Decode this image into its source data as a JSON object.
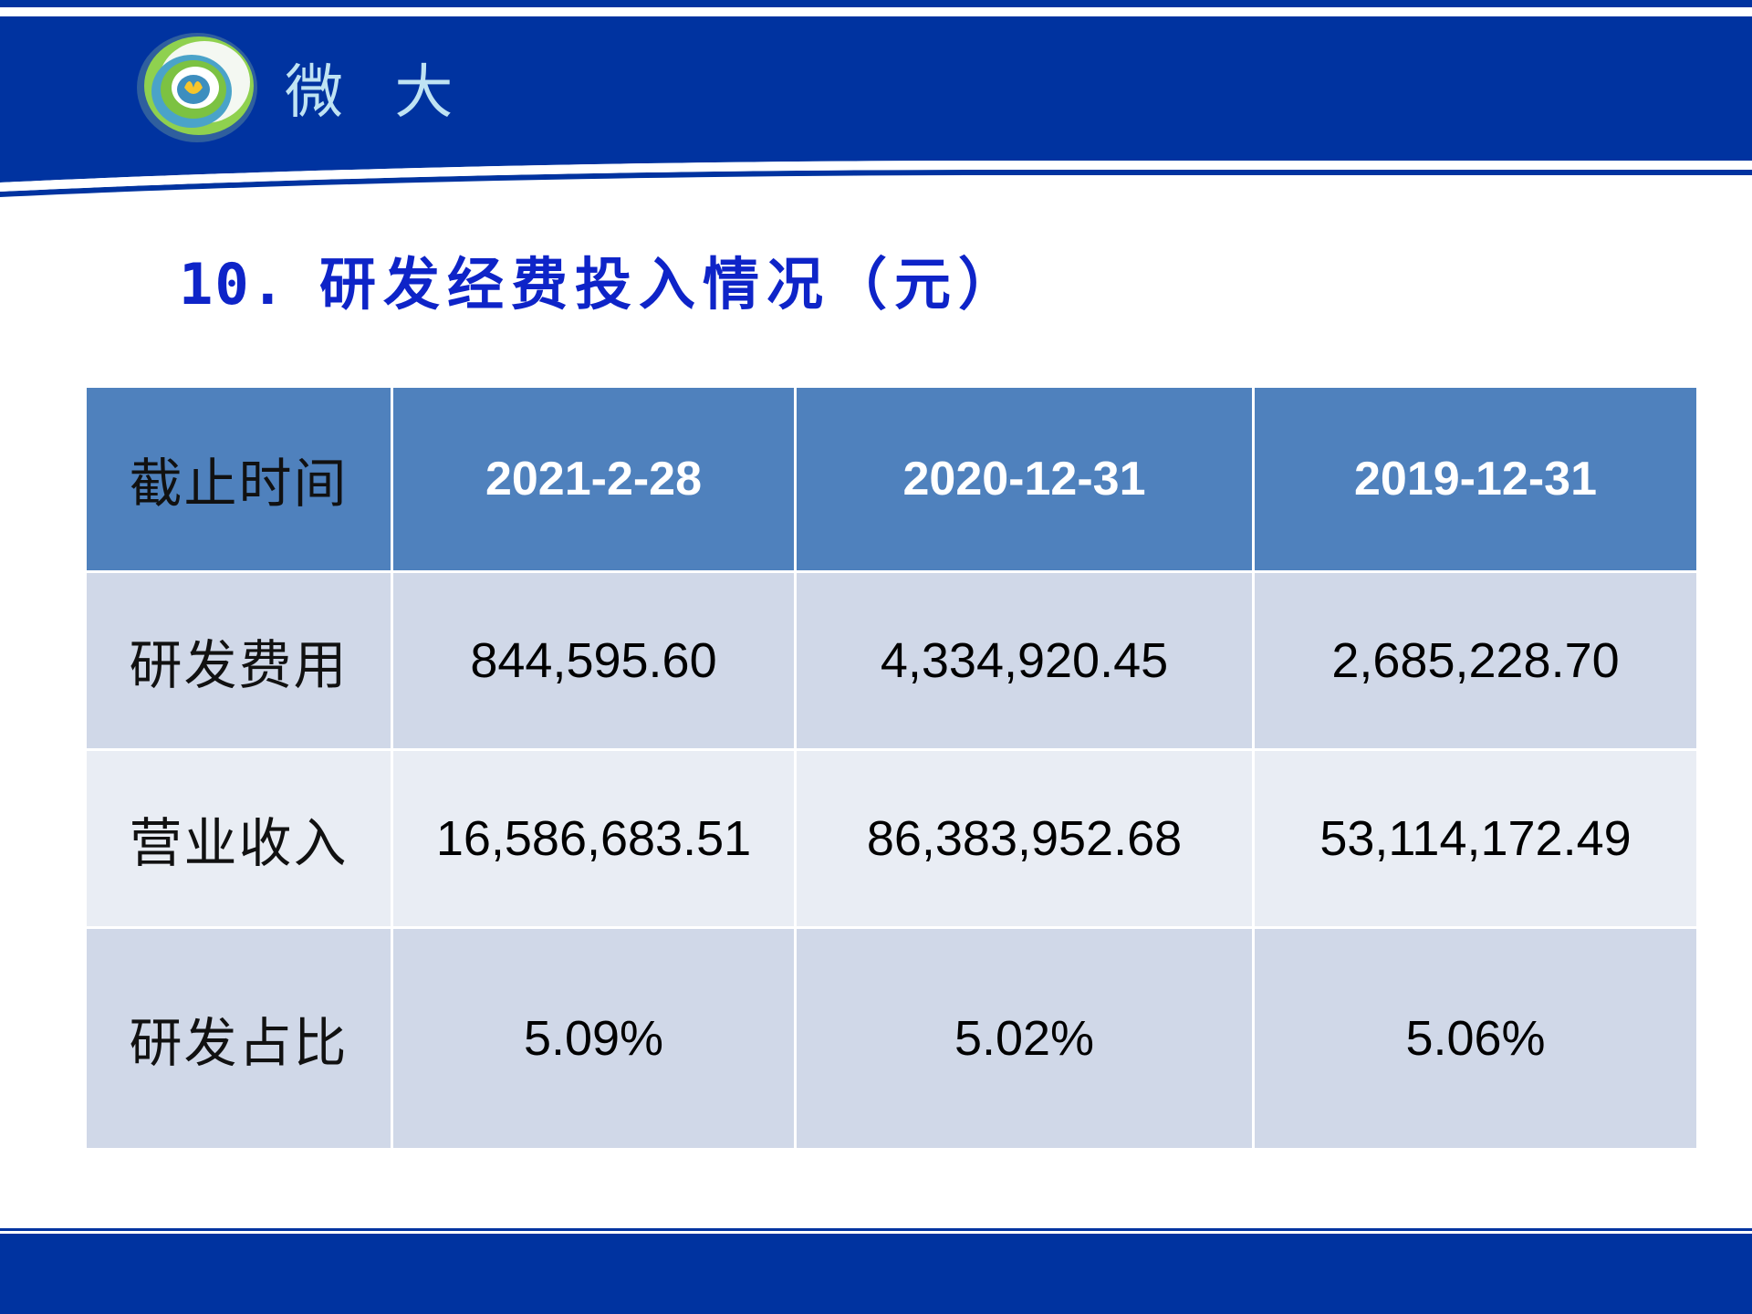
{
  "brand": {
    "name": "微 大",
    "logo_icon": "swirl-logo-icon",
    "colors": {
      "header_blue": "#0033a0",
      "title_blue": "#0e24c8",
      "table_header": "#4f81bd",
      "row_dark": "#d0d8e8",
      "row_light": "#e9edf4"
    }
  },
  "title": {
    "number": "10.",
    "text": "研发经费投入情况（元）"
  },
  "table": {
    "header": {
      "label": "截止时间",
      "dates": [
        "2021-2-28",
        "2020-12-31",
        "2019-12-31"
      ]
    },
    "rows": [
      {
        "label": "研发费用",
        "values": [
          "844,595.60",
          "4,334,920.45",
          "2,685,228.70"
        ]
      },
      {
        "label": "营业收入",
        "values": [
          "16,586,683.51",
          "86,383,952.68",
          "53,114,172.49"
        ]
      },
      {
        "label": "研发占比",
        "values": [
          "5.09%",
          "5.02%",
          "5.06%"
        ]
      }
    ]
  }
}
